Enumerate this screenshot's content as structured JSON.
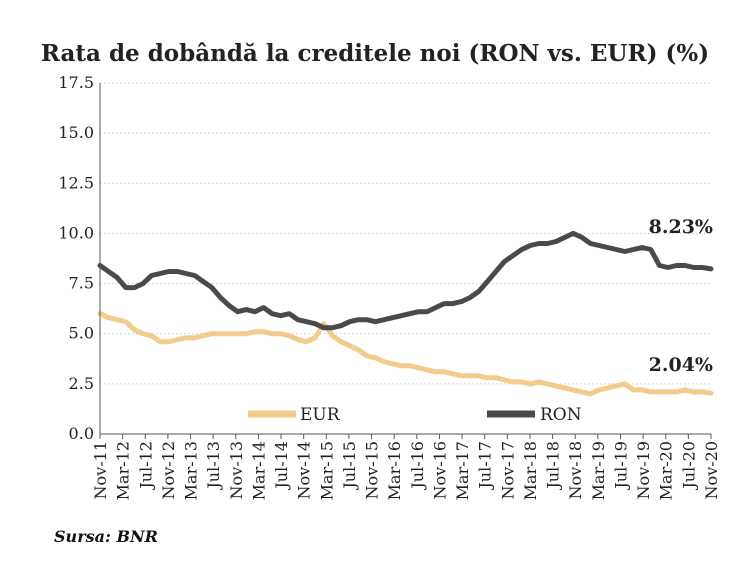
{
  "chart_data": {
    "type": "line",
    "title": "Rata de dobândă la creditele noi (RON vs. EUR) (%)",
    "xlabel": "",
    "ylabel": "",
    "ylim": [
      0,
      17.5
    ],
    "yticks": [
      "0.0",
      "2.5",
      "5.0",
      "7.5",
      "10.0",
      "12.5",
      "15.0",
      "17.5"
    ],
    "x_tick_labels": [
      "Nov-11",
      "Mar-12",
      "Jul-12",
      "Nov-12",
      "Mar-13",
      "Jul-13",
      "Nov-13",
      "Mar-14",
      "Jul-14",
      "Nov-14",
      "Mar-15",
      "Jul-15",
      "Nov-15",
      "Mar-16",
      "Jul-16",
      "Nov-16",
      "Mar-17",
      "Jul-17",
      "Nov-17",
      "Mar-18",
      "Jul-18",
      "Nov-18",
      "Mar-19",
      "Jul-19",
      "Nov-19",
      "Mar-20",
      "Jul-20",
      "Nov-20"
    ],
    "grid": "horizontal",
    "legend_position": "bottom",
    "series": [
      {
        "name": "EUR",
        "color": "#F2CB8E",
        "end_label": "2.04%",
        "values": [
          6.0,
          5.8,
          5.7,
          5.6,
          5.2,
          5.0,
          4.9,
          4.6,
          4.6,
          4.7,
          4.8,
          4.8,
          4.9,
          5.0,
          5.0,
          5.0,
          5.0,
          5.0,
          5.1,
          5.1,
          5.0,
          5.0,
          4.9,
          4.7,
          4.6,
          4.8,
          5.5,
          4.9,
          4.6,
          4.4,
          4.2,
          3.9,
          3.8,
          3.6,
          3.5,
          3.4,
          3.4,
          3.3,
          3.2,
          3.1,
          3.1,
          3.0,
          2.9,
          2.9,
          2.9,
          2.8,
          2.8,
          2.7,
          2.6,
          2.6,
          2.5,
          2.6,
          2.5,
          2.4,
          2.3,
          2.2,
          2.1,
          2.0,
          2.2,
          2.3,
          2.4,
          2.5,
          2.2,
          2.2,
          2.1,
          2.1,
          2.1,
          2.1,
          2.2,
          2.1,
          2.1,
          2.04
        ]
      },
      {
        "name": "RON",
        "color": "#4A4A4A",
        "end_label": "8.23%",
        "values": [
          8.4,
          8.1,
          7.8,
          7.3,
          7.3,
          7.5,
          7.9,
          8.0,
          8.1,
          8.1,
          8.0,
          7.9,
          7.6,
          7.3,
          6.8,
          6.4,
          6.1,
          6.2,
          6.1,
          6.3,
          6.0,
          5.9,
          6.0,
          5.7,
          5.6,
          5.5,
          5.3,
          5.3,
          5.4,
          5.6,
          5.7,
          5.7,
          5.6,
          5.7,
          5.8,
          5.9,
          6.0,
          6.1,
          6.1,
          6.3,
          6.5,
          6.5,
          6.6,
          6.8,
          7.1,
          7.6,
          8.1,
          8.6,
          8.9,
          9.2,
          9.4,
          9.5,
          9.5,
          9.6,
          9.8,
          10.0,
          9.8,
          9.5,
          9.4,
          9.3,
          9.2,
          9.1,
          9.2,
          9.3,
          9.2,
          8.4,
          8.3,
          8.4,
          8.4,
          8.3,
          8.3,
          8.23
        ]
      }
    ]
  },
  "source": "Sursa: BNR"
}
